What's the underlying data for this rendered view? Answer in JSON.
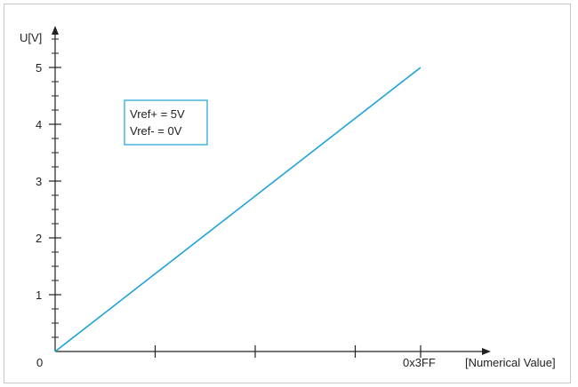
{
  "chart_data": {
    "type": "line",
    "title": "",
    "xlabel": "[Numerical Value]",
    "ylabel": "U[V]",
    "x_origin_label": "0",
    "x_tick_labels": [
      "0x3FF"
    ],
    "xlim": [
      0,
      1023
    ],
    "x_ticks": [
      280,
      560,
      840
    ],
    "ylim": [
      0,
      5
    ],
    "y_major_ticks": [
      1,
      2,
      3,
      4,
      5
    ],
    "y_minor_step": 0.25,
    "series": [
      {
        "x": [
          0,
          1023
        ],
        "y": [
          0,
          5
        ]
      }
    ],
    "annotation": {
      "lines": [
        "Vref+ = 5V",
        "Vref- = 0V"
      ]
    },
    "grid": false,
    "colors": {
      "series": "#1aa3d9",
      "axis": "#222222",
      "annotation_border": "#1aa3d9",
      "frame": "#c8c8c8"
    }
  }
}
